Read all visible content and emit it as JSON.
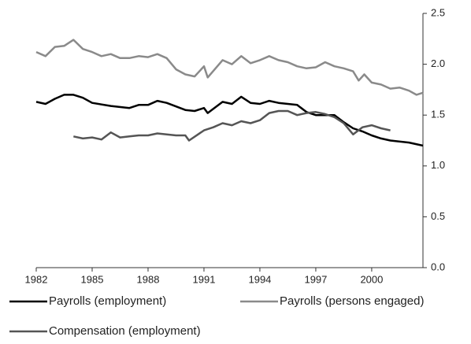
{
  "chart_data": {
    "type": "line",
    "xlim": [
      1982,
      2002.75
    ],
    "xticks": [
      1982,
      1985,
      1988,
      1991,
      1994,
      1997,
      2000
    ],
    "ylim": [
      0,
      2.5
    ],
    "yticks": [
      {
        "value": 0,
        "label": "0.0"
      },
      0.5,
      {
        "value": 1,
        "label": "1.0"
      },
      1.5,
      {
        "value": 2,
        "label": "2.0"
      },
      2.5
    ],
    "legend": "bottom",
    "series": [
      {
        "name": "Payrolls (employment)",
        "color": "#000000",
        "x": [
          1982,
          1982.5,
          1983,
          1983.5,
          1984,
          1984.5,
          1985,
          1986,
          1987,
          1987.5,
          1988,
          1988.5,
          1989,
          1990,
          1990.5,
          1991,
          1991.2,
          1992,
          1992.5,
          1993,
          1993.5,
          1994,
          1994.5,
          1995,
          1996,
          1996.5,
          1997,
          1998,
          1998.5,
          1999,
          1999.5,
          2000,
          2000.5,
          2001,
          2002,
          2002.75
        ],
        "values": [
          1.63,
          1.61,
          1.66,
          1.7,
          1.7,
          1.67,
          1.62,
          1.59,
          1.57,
          1.6,
          1.6,
          1.64,
          1.62,
          1.55,
          1.54,
          1.57,
          1.52,
          1.63,
          1.61,
          1.68,
          1.62,
          1.61,
          1.64,
          1.62,
          1.6,
          1.53,
          1.5,
          1.5,
          1.43,
          1.37,
          1.34,
          1.3,
          1.27,
          1.25,
          1.23,
          1.2
        ]
      },
      {
        "name": "Payrolls (persons engaged)",
        "color": "#8a8a8a",
        "x": [
          1982,
          1982.5,
          1983,
          1983.5,
          1984,
          1984.5,
          1985,
          1985.5,
          1986,
          1986.5,
          1987,
          1987.5,
          1988,
          1988.5,
          1989,
          1989.5,
          1990,
          1990.5,
          1991,
          1991.2,
          1992,
          1992.5,
          1993,
          1993.5,
          1994,
          1994.5,
          1995,
          1995.5,
          1996,
          1996.5,
          1997,
          1997.5,
          1998,
          1998.5,
          1999,
          1999.3,
          1999.6,
          2000,
          2000.5,
          2001,
          2001.5,
          2002,
          2002.4,
          2002.75
        ],
        "values": [
          2.12,
          2.08,
          2.17,
          2.18,
          2.24,
          2.15,
          2.12,
          2.08,
          2.1,
          2.06,
          2.06,
          2.08,
          2.07,
          2.1,
          2.06,
          1.95,
          1.9,
          1.88,
          1.98,
          1.87,
          2.04,
          2.0,
          2.08,
          2.01,
          2.04,
          2.08,
          2.04,
          2.02,
          1.98,
          1.96,
          1.97,
          2.02,
          1.98,
          1.96,
          1.93,
          1.84,
          1.9,
          1.82,
          1.8,
          1.76,
          1.77,
          1.74,
          1.7,
          1.72
        ]
      },
      {
        "name": "Compensation (employment)",
        "color": "#555555",
        "x": [
          1984,
          1984.5,
          1985,
          1985.5,
          1986,
          1986.5,
          1987,
          1987.5,
          1988,
          1988.5,
          1989,
          1989.5,
          1990,
          1990.2,
          1991,
          1991.5,
          1992,
          1992.5,
          1993,
          1993.5,
          1994,
          1994.5,
          1995,
          1995.5,
          1996,
          1996.5,
          1997,
          1997.5,
          1998,
          1998.5,
          1999,
          1999.5,
          2000,
          2000.5,
          2001
        ],
        "values": [
          1.29,
          1.27,
          1.28,
          1.26,
          1.33,
          1.28,
          1.29,
          1.3,
          1.3,
          1.32,
          1.31,
          1.3,
          1.3,
          1.25,
          1.35,
          1.38,
          1.42,
          1.4,
          1.44,
          1.42,
          1.45,
          1.52,
          1.54,
          1.54,
          1.5,
          1.52,
          1.53,
          1.51,
          1.48,
          1.42,
          1.31,
          1.38,
          1.4,
          1.37,
          1.35
        ]
      }
    ]
  }
}
